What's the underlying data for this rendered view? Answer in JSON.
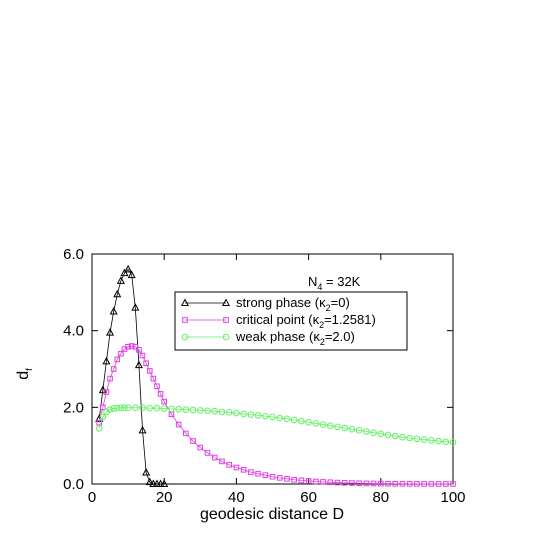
{
  "chart_data": {
    "type": "line",
    "xlabel": "geodesic distance D",
    "ylabel_main": "d",
    "ylabel_sub": "f",
    "xlim": [
      0,
      100
    ],
    "ylim": [
      0,
      6
    ],
    "x_ticks": [
      0,
      20,
      40,
      60,
      80,
      100
    ],
    "x_tick_labels": [
      "0",
      "20",
      "40",
      "60",
      "80",
      "100"
    ],
    "y_ticks": [
      0,
      2,
      4,
      6
    ],
    "y_tick_labels": [
      "0.0",
      "2.0",
      "4.0",
      "6.0"
    ],
    "grid": false,
    "annotation": {
      "main": "N",
      "sub": "4",
      "rest": " = 32K"
    },
    "legend_position": "top-right",
    "series": [
      {
        "name": "strong phase (κ2=0)",
        "legend": {
          "prefix": "strong phase (κ",
          "sub": "2",
          "suffix": "=0)"
        },
        "color": "#000000",
        "marker": "triangle",
        "x": [
          2,
          3,
          4,
          5,
          6,
          7,
          8,
          9,
          10,
          11,
          12,
          13,
          14,
          15,
          16,
          17,
          18,
          19,
          20
        ],
        "y": [
          1.7,
          2.45,
          3.2,
          3.95,
          4.5,
          4.95,
          5.3,
          5.5,
          5.6,
          5.45,
          4.6,
          3.1,
          1.4,
          0.3,
          0.05,
          0.0,
          0.0,
          0.0,
          0.0
        ]
      },
      {
        "name": "critical point (κ2=1.2581)",
        "legend": {
          "prefix": "critical point (κ",
          "sub": "2",
          "suffix": "=1.2581)"
        },
        "color": "#e040e0",
        "marker": "square",
        "x": [
          2,
          3,
          4,
          5,
          6,
          7,
          8,
          9,
          10,
          11,
          12,
          13,
          14,
          15,
          16,
          17,
          18,
          19,
          20,
          22,
          24,
          26,
          28,
          30,
          32,
          34,
          36,
          38,
          40,
          42,
          44,
          46,
          48,
          50,
          52,
          54,
          56,
          58,
          60,
          62,
          64,
          66,
          68,
          70,
          72,
          74,
          76,
          78,
          80,
          82,
          84,
          86,
          88,
          90,
          92,
          94,
          96,
          98,
          100
        ],
        "y": [
          1.6,
          2.0,
          2.4,
          2.75,
          3.0,
          3.25,
          3.4,
          3.52,
          3.58,
          3.6,
          3.58,
          3.5,
          3.35,
          3.15,
          2.95,
          2.75,
          2.55,
          2.35,
          2.15,
          1.82,
          1.55,
          1.32,
          1.12,
          0.95,
          0.81,
          0.69,
          0.59,
          0.5,
          0.43,
          0.37,
          0.31,
          0.27,
          0.23,
          0.19,
          0.16,
          0.135,
          0.11,
          0.095,
          0.08,
          0.065,
          0.055,
          0.045,
          0.037,
          0.03,
          0.025,
          0.02,
          0.016,
          0.013,
          0.01,
          0.008,
          0.006,
          0.005,
          0.004,
          0.003,
          0.002,
          0.002,
          0.001,
          0.001,
          0.001
        ]
      },
      {
        "name": "weak phase (κ2=2.0)",
        "legend": {
          "prefix": "weak phase (κ",
          "sub": "2",
          "suffix": "=2.0)"
        },
        "color": "#66ee66",
        "marker": "circle",
        "x": [
          2,
          3,
          4,
          5,
          6,
          7,
          8,
          9,
          10,
          12,
          14,
          16,
          18,
          20,
          22,
          24,
          26,
          28,
          30,
          32,
          34,
          36,
          38,
          40,
          42,
          44,
          46,
          48,
          50,
          52,
          54,
          56,
          58,
          60,
          62,
          64,
          66,
          68,
          70,
          72,
          74,
          76,
          78,
          80,
          82,
          84,
          86,
          88,
          90,
          92,
          94,
          96,
          98,
          100
        ],
        "y": [
          1.45,
          1.75,
          1.88,
          1.94,
          1.97,
          1.98,
          1.99,
          1.99,
          1.99,
          1.99,
          1.99,
          1.98,
          1.98,
          1.97,
          1.96,
          1.95,
          1.94,
          1.93,
          1.92,
          1.91,
          1.9,
          1.88,
          1.87,
          1.85,
          1.83,
          1.81,
          1.79,
          1.77,
          1.75,
          1.72,
          1.7,
          1.67,
          1.64,
          1.61,
          1.58,
          1.55,
          1.52,
          1.49,
          1.46,
          1.43,
          1.4,
          1.37,
          1.34,
          1.31,
          1.28,
          1.25,
          1.22,
          1.2,
          1.18,
          1.16,
          1.14,
          1.12,
          1.1,
          1.09
        ]
      }
    ]
  }
}
